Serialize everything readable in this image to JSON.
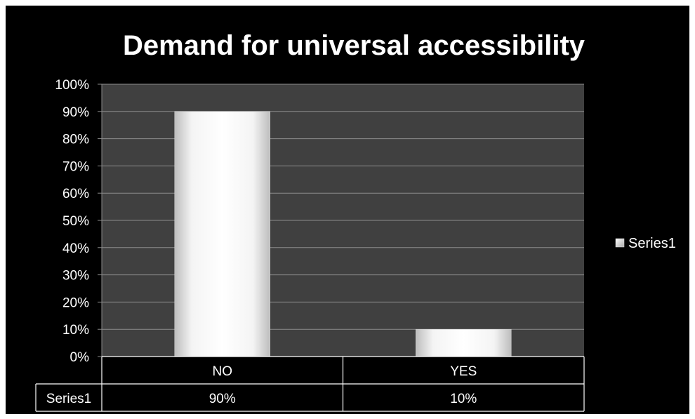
{
  "chart_data": {
    "type": "bar",
    "title": "Demand for universal accessibility",
    "categories": [
      "NO",
      "YES"
    ],
    "series": [
      {
        "name": "Series1",
        "values": [
          90,
          10
        ],
        "labels": [
          "90%",
          "10%"
        ]
      }
    ],
    "yticks": [
      "0%",
      "10%",
      "20%",
      "30%",
      "40%",
      "50%",
      "60%",
      "70%",
      "80%",
      "90%",
      "100%"
    ],
    "ylim": [
      0,
      100
    ],
    "grid": true,
    "legend": "right",
    "data_table": true,
    "colors": {
      "background": "#000000",
      "plot_area": "#404040",
      "gridline": "#8c8c8c",
      "bar": "#f2f2f2",
      "text": "#ffffff"
    }
  }
}
